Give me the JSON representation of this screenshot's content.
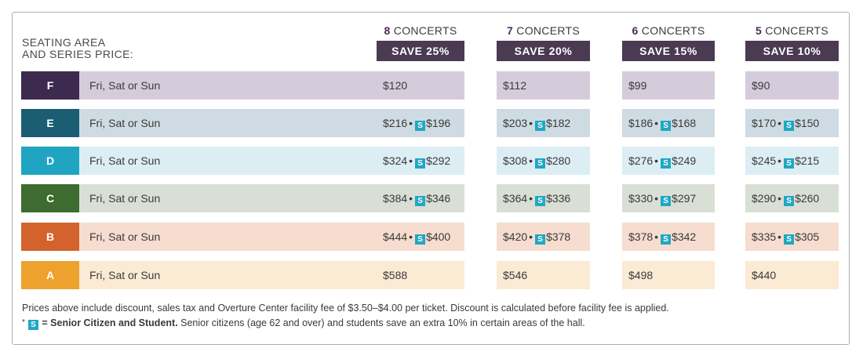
{
  "heading": {
    "line1": "SEATING AREA",
    "line2": "AND SERIES PRICE:"
  },
  "columns": [
    {
      "count": "8",
      "label": "CONCERTS",
      "save": "SAVE 25%"
    },
    {
      "count": "7",
      "label": "CONCERTS",
      "save": "SAVE 20%"
    },
    {
      "count": "6",
      "label": "CONCERTS",
      "save": "SAVE 15%"
    },
    {
      "count": "5",
      "label": "CONCERTS",
      "save": "SAVE 10%"
    }
  ],
  "senior_badge": "S",
  "bullet": "•",
  "rows": [
    {
      "area": "F",
      "days": "Fri, Sat or Sun",
      "color": "#3d2a4f",
      "bg": "#d5ccdb",
      "prices": [
        {
          "p": "$120",
          "s": ""
        },
        {
          "p": "$112",
          "s": ""
        },
        {
          "p": "$99",
          "s": ""
        },
        {
          "p": "$90",
          "s": ""
        }
      ]
    },
    {
      "area": "E",
      "days": "Fri, Sat or Sun",
      "color": "#1b5e73",
      "bg": "#cfdbe2",
      "prices": [
        {
          "p": "$216",
          "s": "$196"
        },
        {
          "p": "$203",
          "s": "$182"
        },
        {
          "p": "$186",
          "s": "$168"
        },
        {
          "p": "$170",
          "s": "$150"
        }
      ]
    },
    {
      "area": "D",
      "days": "Fri, Sat or Sun",
      "color": "#1fa5c2",
      "bg": "#dceef4",
      "prices": [
        {
          "p": "$324",
          "s": "$292"
        },
        {
          "p": "$308",
          "s": "$280"
        },
        {
          "p": "$276",
          "s": "$249"
        },
        {
          "p": "$245",
          "s": "$215"
        }
      ]
    },
    {
      "area": "C",
      "days": "Fri, Sat or Sun",
      "color": "#3e6b2f",
      "bg": "#dadfd6",
      "prices": [
        {
          "p": "$384",
          "s": "$346"
        },
        {
          "p": "$364",
          "s": "$336"
        },
        {
          "p": "$330",
          "s": "$297"
        },
        {
          "p": "$290",
          "s": "$260"
        }
      ]
    },
    {
      "area": "B",
      "days": "Fri, Sat or Sun",
      "color": "#d4622c",
      "bg": "#f6ddd0",
      "prices": [
        {
          "p": "$444",
          "s": "$400"
        },
        {
          "p": "$420",
          "s": "$378"
        },
        {
          "p": "$378",
          "s": "$342"
        },
        {
          "p": "$335",
          "s": "$305"
        }
      ]
    },
    {
      "area": "A",
      "days": "Fri, Sat or Sun",
      "color": "#eda22e",
      "bg": "#fbead4",
      "prices": [
        {
          "p": "$588",
          "s": ""
        },
        {
          "p": "$546",
          "s": ""
        },
        {
          "p": "$498",
          "s": ""
        },
        {
          "p": "$440",
          "s": ""
        }
      ]
    }
  ],
  "notes": {
    "line1": "Prices above include discount, sales tax and Overture Center facility fee of $3.50–$4.00 per ticket. Discount is calculated before facility fee is applied.",
    "asterisk": "*",
    "senior_label": "= Senior Citizen and Student.",
    "senior_text": " Senior citizens (age 62 and over) and students save an extra 10% in certain areas of the hall."
  }
}
